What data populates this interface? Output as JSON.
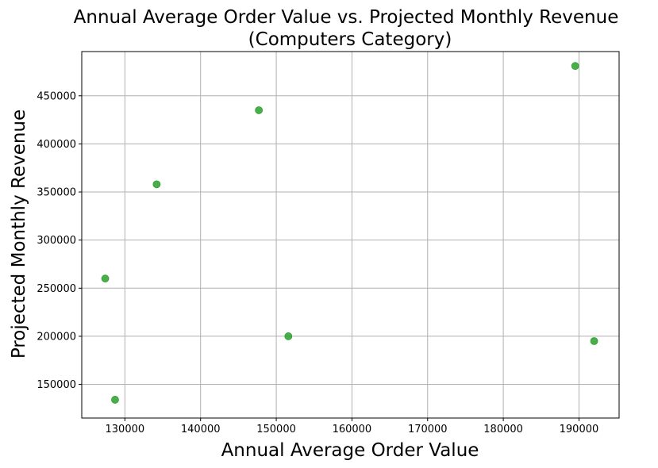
{
  "chart_data": {
    "type": "scatter",
    "title_line1": "Annual Average Order Value vs. Projected Monthly Revenue",
    "title_line2": "(Computers Category)",
    "xlabel": "Annual Average Order Value",
    "ylabel": "Projected Monthly Revenue",
    "xlim": [
      124300,
      195300
    ],
    "ylim": [
      115000,
      496000
    ],
    "x_ticks": [
      130000,
      140000,
      150000,
      160000,
      170000,
      180000,
      190000
    ],
    "x_tick_labels": [
      "130000",
      "140000",
      "150000",
      "160000",
      "170000",
      "180000",
      "190000"
    ],
    "y_ticks": [
      150000,
      200000,
      250000,
      300000,
      350000,
      400000,
      450000
    ],
    "y_tick_labels": [
      "150000",
      "200000",
      "250000",
      "300000",
      "350000",
      "400000",
      "450000"
    ],
    "grid": true,
    "marker_color": "#2ca02c",
    "points": [
      {
        "x": 127400,
        "y": 260000
      },
      {
        "x": 128700,
        "y": 134000
      },
      {
        "x": 134200,
        "y": 358000
      },
      {
        "x": 147700,
        "y": 435000
      },
      {
        "x": 151600,
        "y": 200000
      },
      {
        "x": 189500,
        "y": 481000
      },
      {
        "x": 192000,
        "y": 195000
      }
    ]
  }
}
